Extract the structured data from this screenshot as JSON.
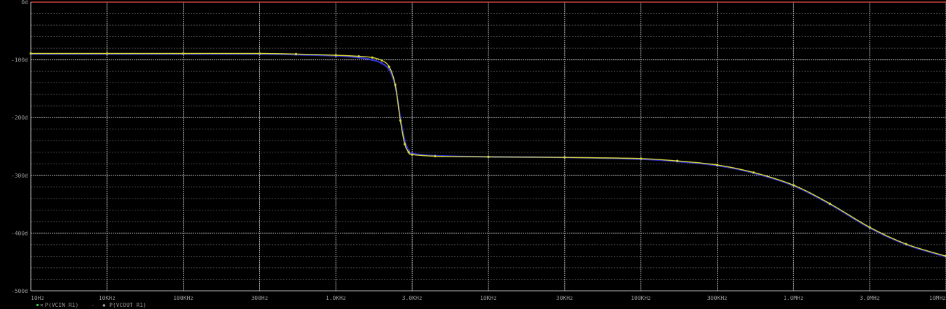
{
  "chart_data": {
    "type": "line",
    "title": "",
    "xlabel": "",
    "ylabel": "",
    "x_scale": "log",
    "x_tick_values": [
      1,
      10,
      100,
      1000,
      10000,
      100000,
      1000000,
      10000000,
      100000000,
      1000000000,
      10000000000,
      100000000000,
      1000000000000
    ],
    "x_tick_labels": [
      "10Hz",
      "10KHz",
      "100KHz",
      "300Hz",
      "1.0KHz",
      "3.0KHz",
      "10KHz",
      "30KHz",
      "100KHz",
      "300KHz",
      "1.0MHz",
      "3.0MHz",
      "10MHz"
    ],
    "x_range": [
      1,
      1000000000000
    ],
    "y_tick_values": [
      0,
      -100,
      -200,
      -300,
      -400,
      -500
    ],
    "y_tick_labels": [
      "0d",
      "-100d",
      "-200d",
      "-300d",
      "-400d",
      "-500d"
    ],
    "y_range": [
      -500,
      0
    ],
    "grid": true,
    "colors": {
      "background": "#000000",
      "grid": "#b9b9b9",
      "grid_minor": "#5e5e5e",
      "frame_top": "#d04040",
      "series_1": "#3535d8",
      "series_2": "#d8d838",
      "legend_marker_1": "#38c838"
    },
    "legend": {
      "placement": "bottom-left",
      "entries": [
        "P(VCIN R1)",
        "P(VCOUT R1)"
      ]
    },
    "series": [
      {
        "name": "P(VCIN R1)",
        "x": [
          1,
          10,
          100,
          1000,
          3000,
          10000,
          20000,
          30000,
          40000,
          50000,
          60000,
          70000,
          80000,
          90000,
          100000,
          200000,
          1000000,
          10000000,
          100000000,
          300000000,
          1000000000,
          3000000000,
          10000000000,
          30000000000,
          100000000000,
          300000000000,
          1000000000000
        ],
        "y": [
          -90,
          -90,
          -90,
          -90,
          -91,
          -93,
          -96,
          -100,
          -106,
          -117,
          -145,
          -200,
          -240,
          -257,
          -262,
          -266,
          -268,
          -269,
          -272,
          -276,
          -283,
          -296,
          -318,
          -350,
          -391,
          -420,
          -441
        ]
      },
      {
        "name": "P(VCOUT R1)",
        "x": [
          1,
          10,
          100,
          1000,
          3000,
          10000,
          20000,
          30000,
          40000,
          50000,
          60000,
          70000,
          80000,
          90000,
          100000,
          200000,
          1000000,
          10000000,
          100000000,
          300000000,
          1000000000,
          3000000000,
          10000000000,
          30000000000,
          100000000000,
          300000000000,
          1000000000000
        ],
        "y": [
          -89,
          -89,
          -89,
          -89,
          -90,
          -92,
          -94,
          -96,
          -101,
          -112,
          -143,
          -205,
          -246,
          -260,
          -264,
          -267,
          -268,
          -269,
          -271,
          -275,
          -282,
          -295,
          -317,
          -349,
          -390,
          -419,
          -440
        ]
      }
    ]
  }
}
